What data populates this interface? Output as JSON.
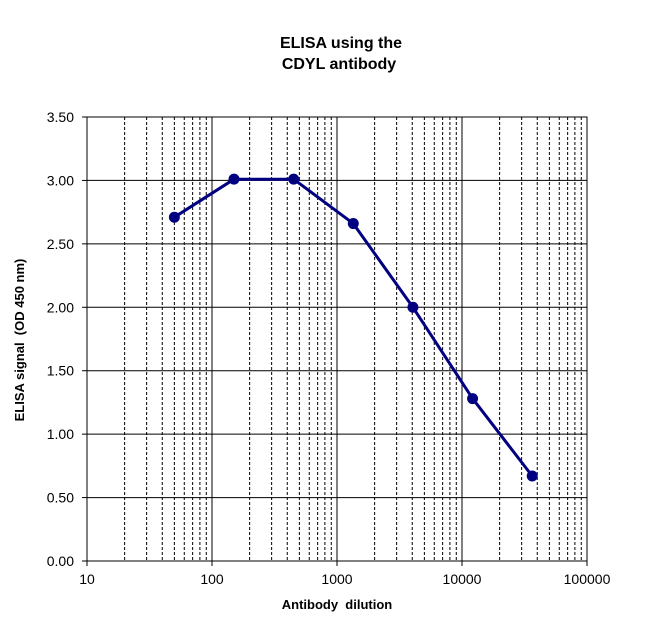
{
  "chart_data": {
    "type": "line",
    "title_lines": [
      "ELISA using the",
      "CDYL antibody"
    ],
    "xlabel": "Antibody  dilution",
    "ylabel": "ELISA signal  (OD 450 nm)",
    "x_scale": "log",
    "xlim": [
      10,
      100000
    ],
    "ylim": [
      0,
      3.5
    ],
    "x_ticks": [
      "10",
      "100",
      "1000",
      "10000",
      "100000"
    ],
    "y_ticks": [
      "0.00",
      "0.50",
      "1.00",
      "1.50",
      "2.00",
      "2.50",
      "3.00",
      "3.50"
    ],
    "grid": "major and minor vertical (log), major horizontal",
    "legend": "none",
    "series": [
      {
        "x": [
          50,
          150,
          450,
          1350,
          4050,
          12150,
          36450
        ],
        "y": [
          2.71,
          3.01,
          3.01,
          2.66,
          2.0,
          1.28,
          0.67
        ],
        "color": "#000080",
        "marker": "circle"
      }
    ]
  }
}
